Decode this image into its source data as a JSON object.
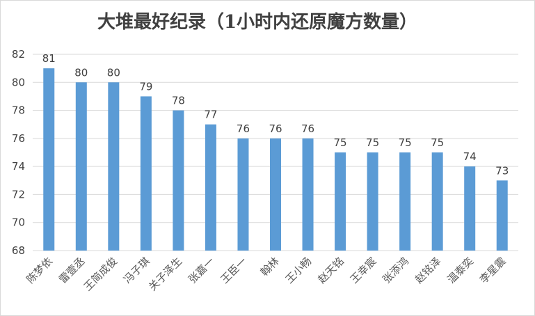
{
  "chart_data": {
    "type": "bar",
    "title": "大堆最好纪录（1小时内还原魔方数量）",
    "xlabel": "",
    "ylabel": "",
    "ylim": [
      68,
      82
    ],
    "yticks": [
      68,
      70,
      72,
      74,
      76,
      78,
      80,
      82
    ],
    "grid": true,
    "categories": [
      "陈梦依",
      "雷壹丞",
      "王简成俊",
      "冯子琪",
      "关子泽生",
      "张嘉一",
      "王臣一",
      "翰林",
      "王小畅",
      "赵天铭",
      "王幸宸",
      "张添鸿",
      "赵铭泽",
      "温泰奕",
      "李星震"
    ],
    "values": [
      81,
      80,
      80,
      79,
      78,
      77,
      76,
      76,
      76,
      75,
      75,
      75,
      75,
      74,
      73
    ],
    "bar_color": "#5b9bd5",
    "grid_color": "#d9d9d9",
    "text_color": "#404040"
  }
}
